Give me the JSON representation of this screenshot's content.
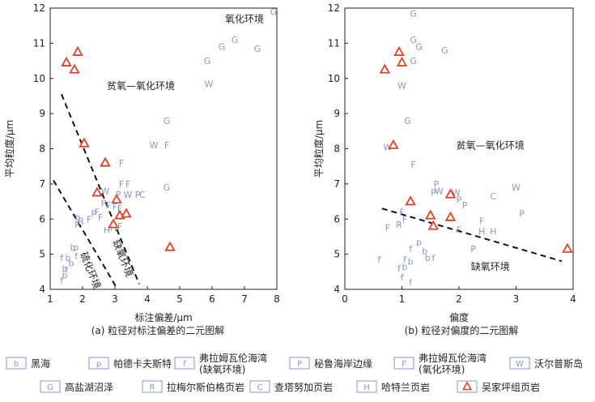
{
  "chart_data": [
    {
      "id": "a",
      "type": "scatter",
      "caption": "(a) 粒径对标注偏差的二元图解",
      "xlabel": "标注偏差/μm",
      "ylabel": "平均粒度/μm",
      "xlim": [
        1,
        8
      ],
      "ylim": [
        4,
        12
      ],
      "xticks": [
        1,
        2,
        3,
        4,
        5,
        6,
        7,
        8
      ],
      "yticks": [
        4,
        5,
        6,
        7,
        8,
        9,
        10,
        11,
        12
      ],
      "region_labels": [
        {
          "text": "氧化环境",
          "x": 7.0,
          "y": 11.6,
          "rotate": 0
        },
        {
          "text": "贫氧—氧化环境",
          "x": 3.8,
          "y": 9.7,
          "rotate": 0
        },
        {
          "text": "缺氧环境",
          "x": 3.15,
          "y": 4.85,
          "rotate": 68
        },
        {
          "text": "硫化环境",
          "x": 2.15,
          "y": 4.5,
          "rotate": 68
        }
      ],
      "boundary_lines": [
        {
          "x": [
            1.35,
            3.75
          ],
          "y": [
            9.55,
            4.15
          ]
        },
        {
          "x": [
            1.1,
            3.05
          ],
          "y": [
            7.1,
            4.05
          ]
        }
      ],
      "markers": [
        {
          "s": "f",
          "x": 1.35,
          "y": 4.25
        },
        {
          "s": "b",
          "x": 1.45,
          "y": 4.4
        },
        {
          "s": "b",
          "x": 1.45,
          "y": 4.6
        },
        {
          "s": "f",
          "x": 1.35,
          "y": 4.9
        },
        {
          "s": "b",
          "x": 1.55,
          "y": 4.9
        },
        {
          "s": "b",
          "x": 1.65,
          "y": 4.75
        },
        {
          "s": "f",
          "x": 1.5,
          "y": 4.55
        },
        {
          "s": "b",
          "x": 1.7,
          "y": 5.2
        },
        {
          "s": "p",
          "x": 1.8,
          "y": 5.2
        },
        {
          "s": "f",
          "x": 1.8,
          "y": 4.95
        },
        {
          "s": "b",
          "x": 1.85,
          "y": 6.05
        },
        {
          "s": "R",
          "x": 1.85,
          "y": 5.85
        },
        {
          "s": "R",
          "x": 1.95,
          "y": 5.95
        },
        {
          "s": "F",
          "x": 2.2,
          "y": 6.0
        },
        {
          "s": "P",
          "x": 2.35,
          "y": 6.15
        },
        {
          "s": "F",
          "x": 2.45,
          "y": 6.2
        },
        {
          "s": "F",
          "x": 2.55,
          "y": 6.05
        },
        {
          "s": "W",
          "x": 2.7,
          "y": 6.8
        },
        {
          "s": "P",
          "x": 2.65,
          "y": 6.45
        },
        {
          "s": "F",
          "x": 2.8,
          "y": 6.4
        },
        {
          "s": "F",
          "x": 3.0,
          "y": 6.35
        },
        {
          "s": "P",
          "x": 3.1,
          "y": 6.7
        },
        {
          "s": "F",
          "x": 3.15,
          "y": 6.3
        },
        {
          "s": "H",
          "x": 2.75,
          "y": 5.7
        },
        {
          "s": "H",
          "x": 2.95,
          "y": 5.75
        },
        {
          "s": "F",
          "x": 3.15,
          "y": 5.8
        },
        {
          "s": "F",
          "x": 3.2,
          "y": 7.6
        },
        {
          "s": "F",
          "x": 3.2,
          "y": 7.0
        },
        {
          "s": "F",
          "x": 3.4,
          "y": 7.0
        },
        {
          "s": "W",
          "x": 3.4,
          "y": 6.7
        },
        {
          "s": "P",
          "x": 3.7,
          "y": 6.7
        },
        {
          "s": "C",
          "x": 3.85,
          "y": 6.7
        },
        {
          "s": "G",
          "x": 4.6,
          "y": 8.8
        },
        {
          "s": "G",
          "x": 4.6,
          "y": 6.9
        },
        {
          "s": "W",
          "x": 4.2,
          "y": 8.1
        },
        {
          "s": "F",
          "x": 4.6,
          "y": 8.1
        },
        {
          "s": "W",
          "x": 5.9,
          "y": 9.85
        },
        {
          "s": "G",
          "x": 5.85,
          "y": 10.5
        },
        {
          "s": "G",
          "x": 6.3,
          "y": 10.9
        },
        {
          "s": "G",
          "x": 6.7,
          "y": 11.1
        },
        {
          "s": "G",
          "x": 7.4,
          "y": 10.85
        },
        {
          "s": "G",
          "x": 7.9,
          "y": 11.9
        }
      ],
      "triangles": [
        {
          "x": 1.5,
          "y": 10.45
        },
        {
          "x": 1.75,
          "y": 10.25
        },
        {
          "x": 1.85,
          "y": 10.75
        },
        {
          "x": 2.05,
          "y": 8.15
        },
        {
          "x": 2.45,
          "y": 6.75
        },
        {
          "x": 2.7,
          "y": 7.6
        },
        {
          "x": 2.95,
          "y": 5.85
        },
        {
          "x": 3.05,
          "y": 6.55
        },
        {
          "x": 3.15,
          "y": 6.1
        },
        {
          "x": 3.35,
          "y": 6.15
        },
        {
          "x": 4.7,
          "y": 5.2
        }
      ]
    },
    {
      "id": "b",
      "type": "scatter",
      "caption": "(b) 粒径对偏度的二元图解",
      "xlabel": "偏度",
      "ylabel": "平均粒度/μm",
      "xlim": [
        0,
        4
      ],
      "ylim": [
        4,
        12
      ],
      "xticks": [
        0,
        1,
        2,
        3,
        4
      ],
      "yticks": [
        4,
        5,
        6,
        7,
        8,
        9,
        10,
        11,
        12
      ],
      "region_labels": [
        {
          "text": "贫氧—氧化环境",
          "x": 2.55,
          "y": 8.0,
          "rotate": 0
        },
        {
          "text": "缺氧环境",
          "x": 2.55,
          "y": 4.55,
          "rotate": 0
        }
      ],
      "boundary_lines": [
        {
          "x": [
            0.65,
            3.8
          ],
          "y": [
            6.3,
            4.8
          ]
        }
      ],
      "markers": [
        {
          "s": "G",
          "x": 1.2,
          "y": 11.85
        },
        {
          "s": "G",
          "x": 1.2,
          "y": 11.1
        },
        {
          "s": "G",
          "x": 1.3,
          "y": 10.9
        },
        {
          "s": "G",
          "x": 1.2,
          "y": 10.5
        },
        {
          "s": "G",
          "x": 1.75,
          "y": 10.8
        },
        {
          "s": "W",
          "x": 1.0,
          "y": 9.8
        },
        {
          "s": "G",
          "x": 1.1,
          "y": 8.8
        },
        {
          "s": "W",
          "x": 0.75,
          "y": 8.05
        },
        {
          "s": "F",
          "x": 2.0,
          "y": 8.05
        },
        {
          "s": "F",
          "x": 1.2,
          "y": 7.55
        },
        {
          "s": "P",
          "x": 1.55,
          "y": 6.75
        },
        {
          "s": "W",
          "x": 1.65,
          "y": 6.8
        },
        {
          "s": "P",
          "x": 1.6,
          "y": 7.0
        },
        {
          "s": "W",
          "x": 1.95,
          "y": 6.75
        },
        {
          "s": "P",
          "x": 2.0,
          "y": 6.55
        },
        {
          "s": "P",
          "x": 2.1,
          "y": 6.4
        },
        {
          "s": "C",
          "x": 2.6,
          "y": 6.65
        },
        {
          "s": "W",
          "x": 3.0,
          "y": 6.9
        },
        {
          "s": "P",
          "x": 3.1,
          "y": 6.15
        },
        {
          "s": "F",
          "x": 1.0,
          "y": 6.2
        },
        {
          "s": "F",
          "x": 1.05,
          "y": 6.0
        },
        {
          "s": "R",
          "x": 0.95,
          "y": 5.85
        },
        {
          "s": "F",
          "x": 0.75,
          "y": 5.75
        },
        {
          "s": "F",
          "x": 2.0,
          "y": 5.7
        },
        {
          "s": "F",
          "x": 2.4,
          "y": 5.95
        },
        {
          "s": "H",
          "x": 2.4,
          "y": 5.65
        },
        {
          "s": "H",
          "x": 2.6,
          "y": 5.65
        },
        {
          "s": "P",
          "x": 2.25,
          "y": 5.15
        },
        {
          "s": "f",
          "x": 0.6,
          "y": 4.85
        },
        {
          "s": "f",
          "x": 0.95,
          "y": 4.6
        },
        {
          "s": "f",
          "x": 1.05,
          "y": 4.85
        },
        {
          "s": "b",
          "x": 1.05,
          "y": 4.65
        },
        {
          "s": "b",
          "x": 1.15,
          "y": 4.8
        },
        {
          "s": "f",
          "x": 1.15,
          "y": 5.15
        },
        {
          "s": "p",
          "x": 1.3,
          "y": 5.35
        },
        {
          "s": "b",
          "x": 1.4,
          "y": 5.1
        },
        {
          "s": "b",
          "x": 1.45,
          "y": 4.9
        },
        {
          "s": "f",
          "x": 1.55,
          "y": 4.9
        },
        {
          "s": "f",
          "x": 1.0,
          "y": 4.35
        },
        {
          "s": "f",
          "x": 1.15,
          "y": 4.2
        }
      ],
      "triangles": [
        {
          "x": 0.7,
          "y": 10.25
        },
        {
          "x": 0.95,
          "y": 10.75
        },
        {
          "x": 1.0,
          "y": 10.45
        },
        {
          "x": 0.85,
          "y": 8.1
        },
        {
          "x": 1.15,
          "y": 6.5
        },
        {
          "x": 1.5,
          "y": 6.1
        },
        {
          "x": 1.55,
          "y": 5.8
        },
        {
          "x": 1.85,
          "y": 6.7
        },
        {
          "x": 1.85,
          "y": 6.05
        },
        {
          "x": 3.9,
          "y": 5.15
        }
      ]
    }
  ],
  "legend": [
    {
      "symbol": "b",
      "label": "黑海"
    },
    {
      "symbol": "p",
      "label": "帕德卡夫斯特"
    },
    {
      "symbol": "f",
      "label": "弗拉姆瓦伦海湾",
      "label2": "(缺氧环境)"
    },
    {
      "symbol": "P",
      "label": "秘鲁海岸边缘"
    },
    {
      "symbol": "F",
      "label": "弗拉姆瓦伦海湾",
      "label2": "(氧化环境)"
    },
    {
      "symbol": "W",
      "label": "沃尔普斯岛"
    },
    {
      "symbol": "G",
      "label": "高盐湖沼泽"
    },
    {
      "symbol": "R",
      "label": "拉梅尔斯伯格页岩"
    },
    {
      "symbol": "C",
      "label": "查塔努加页岩"
    },
    {
      "symbol": "H",
      "label": "哈特兰页岩"
    },
    {
      "symbol": "triangle",
      "label": "吴家坪组页岩"
    }
  ],
  "colors": {
    "marker": "#8a95cc",
    "triangle_stroke": "#e0412a",
    "triangle_fill": "#ffffff",
    "axis": "#222222"
  }
}
